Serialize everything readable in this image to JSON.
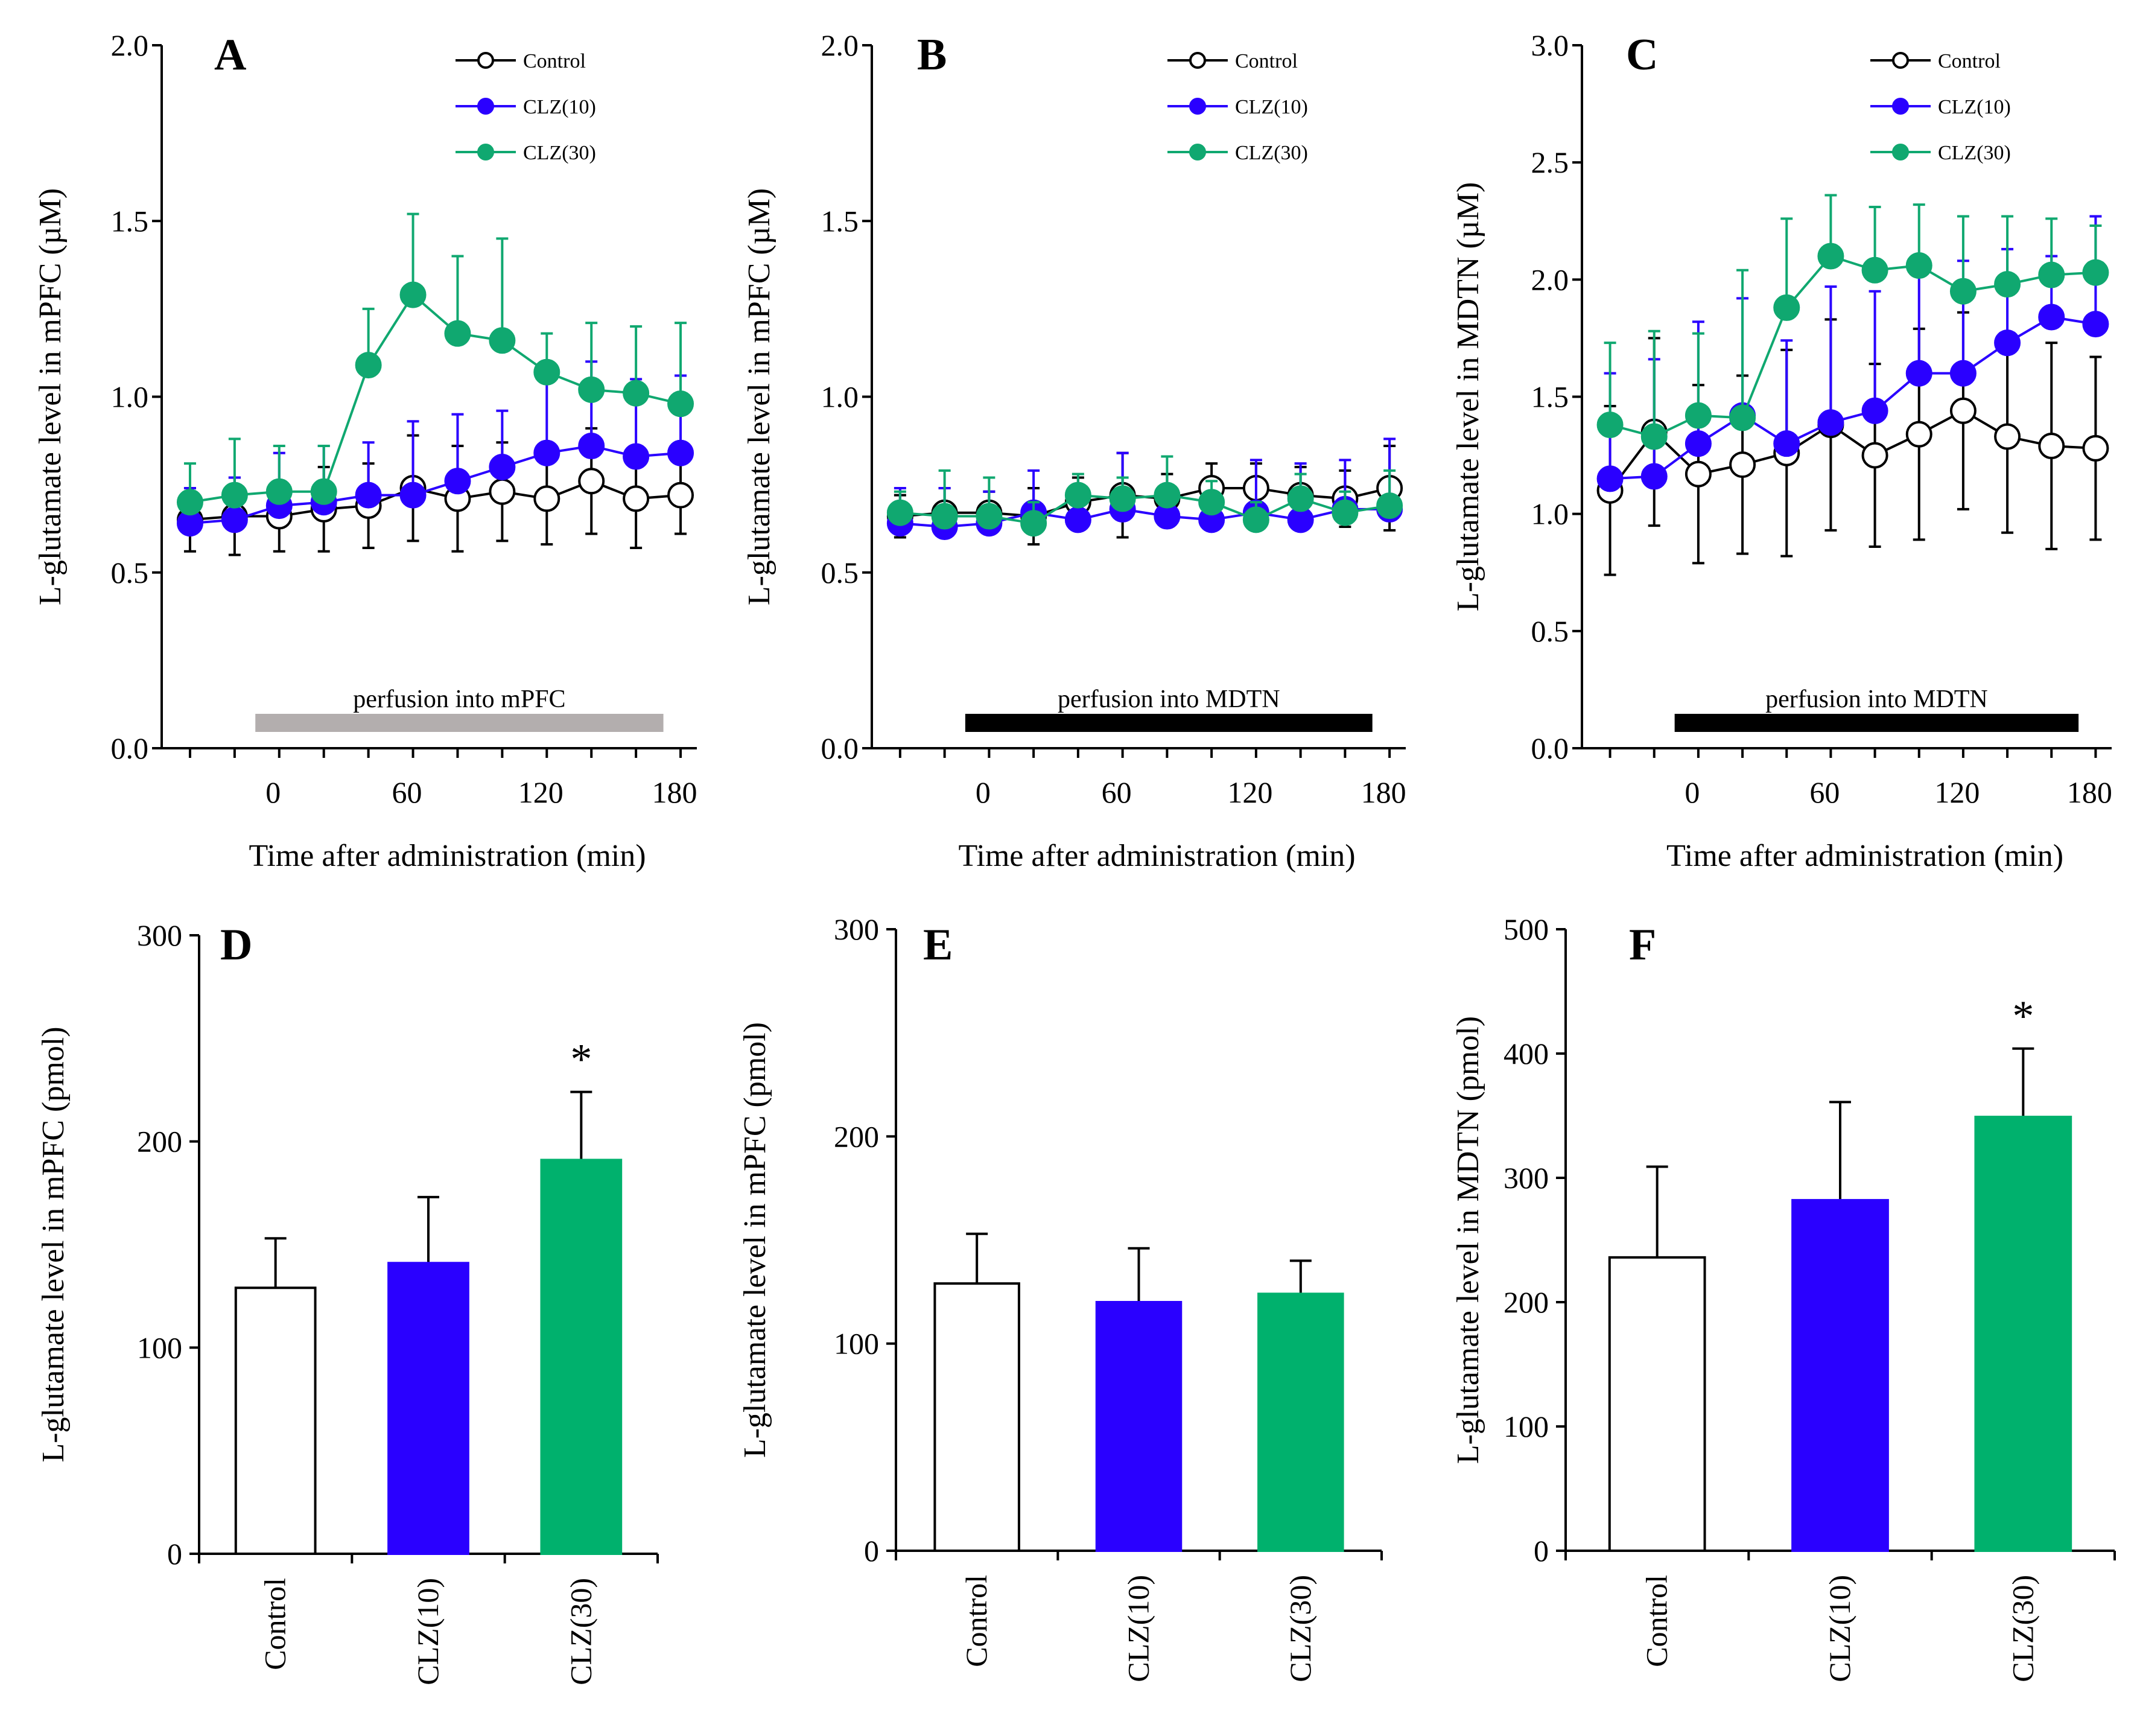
{
  "colors": {
    "control": "#000000",
    "clz10": "#2a00ff",
    "clz30": "#10a870",
    "clz30_bar": "#00b16d",
    "bar_gray": "#b3aeae",
    "bar_black": "#000000"
  },
  "chart_data": [
    {
      "id": "A",
      "type": "line",
      "panel_label": "A",
      "ylabel": "L-glutamate level in mPFC (µM)",
      "xlabel": "Time after administration (min)",
      "ylim": [
        0,
        2.0
      ],
      "yticks": [
        "0.0",
        "0.5",
        "1.0",
        "1.5",
        "2.0"
      ],
      "ytick_values": [
        0,
        0.5,
        1.0,
        1.5,
        2.0
      ],
      "xlim": [
        -50,
        190
      ],
      "xticks": [
        "0",
        "60",
        "120",
        "180"
      ],
      "xtick_values": [
        0,
        60,
        120,
        180
      ],
      "bar_label": "perfusion into mPFC",
      "bar_range": [
        -8,
        175
      ],
      "bar_color": "gray",
      "x": [
        -40,
        -20,
        0,
        20,
        40,
        60,
        80,
        100,
        120,
        140,
        160,
        180
      ],
      "series": [
        {
          "name": "Control",
          "values": [
            0.65,
            0.66,
            0.66,
            0.68,
            0.69,
            0.74,
            0.71,
            0.73,
            0.71,
            0.76,
            0.71,
            0.72
          ],
          "err": [
            0.09,
            0.11,
            0.1,
            0.12,
            0.12,
            0.15,
            0.15,
            0.14,
            0.13,
            0.15,
            0.14,
            0.11
          ]
        },
        {
          "name": "CLZ(10)",
          "values": [
            0.64,
            0.65,
            0.69,
            0.7,
            0.72,
            0.72,
            0.76,
            0.8,
            0.84,
            0.86,
            0.83,
            0.84
          ],
          "err": [
            0.1,
            0.12,
            0.15,
            0.16,
            0.15,
            0.21,
            0.19,
            0.16,
            0.2,
            0.24,
            0.22,
            0.22
          ]
        },
        {
          "name": "CLZ(30)",
          "values": [
            0.7,
            0.72,
            0.73,
            0.73,
            1.09,
            1.29,
            1.18,
            1.16,
            1.07,
            1.02,
            1.01,
            0.98
          ],
          "err": [
            0.11,
            0.16,
            0.13,
            0.13,
            0.16,
            0.23,
            0.22,
            0.29,
            0.11,
            0.19,
            0.19,
            0.23
          ]
        }
      ],
      "legend": [
        "Control",
        "CLZ(10)",
        "CLZ(30)"
      ]
    },
    {
      "id": "B",
      "type": "line",
      "panel_label": "B",
      "ylabel": "L-glutamate level in mPFC (µM)",
      "xlabel": "Time after administration (min)",
      "ylim": [
        0,
        2.0
      ],
      "yticks": [
        "0.0",
        "0.5",
        "1.0",
        "1.5",
        "2.0"
      ],
      "ytick_values": [
        0,
        0.5,
        1.0,
        1.5,
        2.0
      ],
      "xlim": [
        -50,
        190
      ],
      "xticks": [
        "0",
        "60",
        "120",
        "180"
      ],
      "xtick_values": [
        0,
        60,
        120,
        180
      ],
      "bar_label": "perfusion into MDTN",
      "bar_range": [
        -8,
        175
      ],
      "bar_color": "black",
      "x": [
        -40,
        -20,
        0,
        20,
        40,
        60,
        80,
        100,
        120,
        140,
        160,
        180
      ],
      "series": [
        {
          "name": "Control",
          "values": [
            0.66,
            0.67,
            0.67,
            0.66,
            0.7,
            0.72,
            0.71,
            0.74,
            0.74,
            0.72,
            0.71,
            0.74
          ],
          "err": [
            0.06,
            0.07,
            0.06,
            0.08,
            0.07,
            0.12,
            0.07,
            0.07,
            0.07,
            0.08,
            0.08,
            0.12
          ]
        },
        {
          "name": "CLZ(10)",
          "values": [
            0.64,
            0.63,
            0.64,
            0.67,
            0.65,
            0.68,
            0.66,
            0.65,
            0.67,
            0.65,
            0.68,
            0.68
          ],
          "err": [
            0.1,
            0.11,
            0.09,
            0.12,
            0.06,
            0.16,
            0.06,
            0.05,
            0.15,
            0.16,
            0.14,
            0.2
          ]
        },
        {
          "name": "CLZ(30)",
          "values": [
            0.67,
            0.66,
            0.66,
            0.64,
            0.72,
            0.71,
            0.72,
            0.7,
            0.65,
            0.71,
            0.67,
            0.69
          ],
          "err": [
            0.06,
            0.13,
            0.11,
            0.06,
            0.06,
            0.06,
            0.11,
            0.06,
            0.05,
            0.07,
            0.06,
            0.1
          ]
        }
      ],
      "legend": [
        "Control",
        "CLZ(10)",
        "CLZ(30)"
      ]
    },
    {
      "id": "C",
      "type": "line",
      "panel_label": "C",
      "ylabel": "L-glutamate level in MDTN (µM)",
      "xlabel": "Time after administration (min)",
      "ylim": [
        0,
        3.0
      ],
      "yticks": [
        "0.0",
        "0.5",
        "1.0",
        "1.5",
        "2.0",
        "2.5",
        "3.0"
      ],
      "ytick_values": [
        0,
        0.5,
        1.0,
        1.5,
        2.0,
        2.5,
        3.0
      ],
      "xlim": [
        -50,
        190
      ],
      "xticks": [
        "0",
        "60",
        "120",
        "180"
      ],
      "xtick_values": [
        0,
        60,
        120,
        180
      ],
      "bar_label": "perfusion into MDTN",
      "bar_range": [
        -8,
        175
      ],
      "bar_color": "black",
      "x": [
        -40,
        -20,
        0,
        20,
        40,
        60,
        80,
        100,
        120,
        140,
        160,
        180
      ],
      "series": [
        {
          "name": "Control",
          "values": [
            1.1,
            1.35,
            1.17,
            1.21,
            1.26,
            1.38,
            1.25,
            1.34,
            1.44,
            1.33,
            1.29,
            1.28
          ],
          "err": [
            0.36,
            0.4,
            0.38,
            0.38,
            0.44,
            0.45,
            0.39,
            0.45,
            0.42,
            0.41,
            0.44,
            0.39
          ]
        },
        {
          "name": "CLZ(10)",
          "values": [
            1.15,
            1.16,
            1.3,
            1.42,
            1.3,
            1.39,
            1.44,
            1.6,
            1.6,
            1.73,
            1.84,
            1.81
          ],
          "err": [
            0.45,
            0.5,
            0.52,
            0.5,
            0.44,
            0.58,
            0.51,
            0.48,
            0.48,
            0.4,
            0.26,
            0.46
          ]
        },
        {
          "name": "CLZ(30)",
          "values": [
            1.38,
            1.33,
            1.42,
            1.41,
            1.88,
            2.1,
            2.04,
            2.06,
            1.95,
            1.98,
            2.02,
            2.03
          ],
          "err": [
            0.35,
            0.45,
            0.35,
            0.63,
            0.38,
            0.26,
            0.27,
            0.26,
            0.32,
            0.29,
            0.24,
            0.2
          ]
        }
      ],
      "legend": [
        "Control",
        "CLZ(10)",
        "CLZ(30)"
      ]
    },
    {
      "id": "D",
      "type": "bar",
      "panel_label": "D",
      "ylabel": "L-glutamate level in mPFC (pmol)",
      "ylim": [
        0,
        300
      ],
      "yticks": [
        "0",
        "100",
        "200",
        "300"
      ],
      "ytick_values": [
        0,
        100,
        200,
        300
      ],
      "categories": [
        "Control",
        "CLZ(10)",
        "CLZ(30)"
      ],
      "values": [
        129,
        141,
        191
      ],
      "err": [
        24,
        32,
        33
      ],
      "significance": [
        "",
        "",
        "*"
      ]
    },
    {
      "id": "E",
      "type": "bar",
      "panel_label": "E",
      "ylabel": "L-glutamate level in mPFC (pmol)",
      "ylim": [
        0,
        300
      ],
      "yticks": [
        "0",
        "100",
        "200",
        "300"
      ],
      "ytick_values": [
        0,
        100,
        200,
        300
      ],
      "categories": [
        "Control",
        "CLZ(10)",
        "CLZ(30)"
      ],
      "values": [
        129,
        120,
        124
      ],
      "err": [
        24,
        26,
        16
      ],
      "significance": [
        "",
        "",
        ""
      ]
    },
    {
      "id": "F",
      "type": "bar",
      "panel_label": "F",
      "ylabel": "L-glutamate level in MDTN (pmol)",
      "ylim": [
        0,
        500
      ],
      "yticks": [
        "0",
        "100",
        "200",
        "300",
        "400",
        "500"
      ],
      "ytick_values": [
        0,
        100,
        200,
        300,
        400,
        500
      ],
      "categories": [
        "Control",
        "CLZ(10)",
        "CLZ(30)"
      ],
      "values": [
        236,
        282,
        349
      ],
      "err": [
        73,
        79,
        55
      ],
      "significance": [
        "",
        "",
        "*"
      ]
    }
  ]
}
